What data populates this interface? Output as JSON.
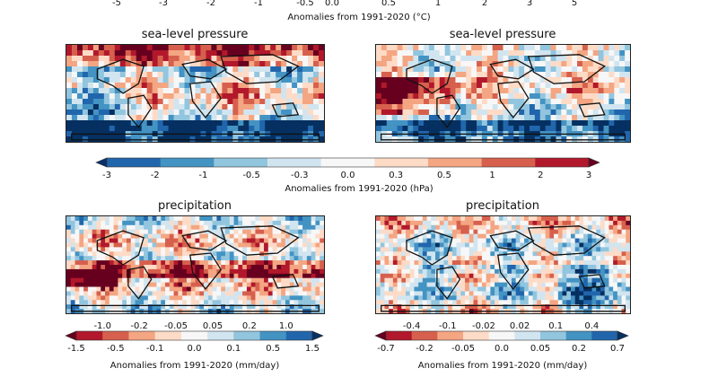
{
  "chart_data": [
    {
      "type": "heatmap",
      "title": "",
      "colorbar": {
        "ticks": [
          "-5",
          "-3",
          "-2",
          "-1",
          "-0.5",
          "0.0",
          "0.5",
          "1",
          "2",
          "3",
          "5"
        ],
        "label": "Anomalies from 1991-2020 (°C)"
      }
    },
    {
      "type": "heatmap",
      "title": "sea-level pressure",
      "panel": "left",
      "variable": "sea-level pressure"
    },
    {
      "type": "heatmap",
      "title": "sea-level pressure",
      "panel": "right",
      "variable": "sea-level pressure"
    },
    {
      "type": "colorbar",
      "ticks": [
        "-3",
        "-2",
        "-1",
        "-0.5",
        "-0.3",
        "0.0",
        "0.3",
        "0.5",
        "1",
        "2",
        "3"
      ],
      "label": "Anomalies from 1991-2020 (hPa)",
      "colors": [
        "#08306b",
        "#2166ac",
        "#4393c3",
        "#92c5de",
        "#d1e5f0",
        "#f7f7f7",
        "#fddbc7",
        "#f4a582",
        "#d6604d",
        "#b2182b",
        "#67001f"
      ]
    },
    {
      "type": "heatmap",
      "title": "precipitation",
      "panel": "left",
      "variable": "precipitation"
    },
    {
      "type": "heatmap",
      "title": "precipitation",
      "panel": "right",
      "variable": "precipitation"
    },
    {
      "type": "colorbar",
      "panel": "left",
      "ticks_top": [
        "-1.0",
        "-0.2",
        "-0.05",
        "0.05",
        "0.2",
        "1.0"
      ],
      "ticks_bottom": [
        "-1.5",
        "-0.5",
        "-0.1",
        "0.0",
        "0.1",
        "0.5",
        "1.5"
      ],
      "label": "Anomalies from 1991-2020 (mm/day)",
      "colors": [
        "#67001f",
        "#b2182b",
        "#d6604d",
        "#f4a582",
        "#fddbc7",
        "#f7f7f7",
        "#d1e5f0",
        "#92c5de",
        "#4393c3",
        "#2166ac",
        "#053061"
      ]
    },
    {
      "type": "colorbar",
      "panel": "right",
      "ticks_top": [
        "-0.4",
        "-0.1",
        "-0.02",
        "0.02",
        "0.1",
        "0.4"
      ],
      "ticks_bottom": [
        "-0.7",
        "-0.2",
        "-0.05",
        "0.0",
        "0.05",
        "0.2",
        "0.7"
      ],
      "label": "Anomalies from 1991-2020 (mm/day)",
      "colors": [
        "#67001f",
        "#b2182b",
        "#d6604d",
        "#f4a582",
        "#fddbc7",
        "#f7f7f7",
        "#d1e5f0",
        "#92c5de",
        "#4393c3",
        "#2166ac",
        "#053061"
      ]
    }
  ]
}
